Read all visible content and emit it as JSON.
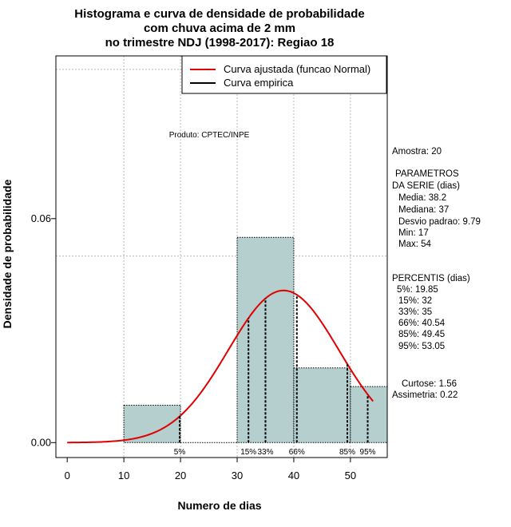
{
  "chart_data": {
    "type": "bar",
    "title_lines": [
      "Histograma e curva de densidade de probabilidade",
      "com chuva acima de 2 mm",
      "no trimestre NDJ (1998-2017): Regiao 18"
    ],
    "xlabel": "Numero de dias",
    "ylabel": "Densidade de probabilidade",
    "xlim": [
      -2,
      56.5
    ],
    "ylim": [
      -0.004,
      0.1036
    ],
    "x_ticks": [
      0,
      10,
      20,
      30,
      40,
      50
    ],
    "y_ticks": [
      {
        "value": 0.0,
        "label": "0.00"
      },
      {
        "value": 0.06,
        "label": "0.06"
      }
    ],
    "grid_x": [
      10,
      20,
      30,
      40,
      50
    ],
    "grid_y": [
      0.05,
      0.1
    ],
    "bins": [
      {
        "start": 10,
        "end": 20,
        "density": 0.01
      },
      {
        "start": 20,
        "end": 30,
        "density": 0.0
      },
      {
        "start": 30,
        "end": 40,
        "density": 0.055
      },
      {
        "start": 40,
        "end": 50,
        "density": 0.02
      },
      {
        "start": 50,
        "end": 56.5,
        "density": 0.015
      }
    ],
    "bar_color": "#b5cece",
    "curve": {
      "mean": 38.2,
      "sd": 9.79,
      "x_range": [
        0,
        54
      ],
      "color": "#e00000"
    },
    "percentile_markers": [
      {
        "label": "5%",
        "x": 19.85
      },
      {
        "label": "15%",
        "x": 32
      },
      {
        "label": "33%",
        "x": 35
      },
      {
        "label": "66%",
        "x": 40.54
      },
      {
        "label": "85%",
        "x": 49.45
      },
      {
        "label": "95%",
        "x": 53.05
      }
    ],
    "legend": {
      "position": "top-right",
      "entries": [
        {
          "label": "Curva ajustada (funcao Normal)",
          "color": "#e00000"
        },
        {
          "label": "Curva empirica",
          "color": "#000000"
        }
      ]
    },
    "annotation": "Produto: CPTEC/INPE",
    "side_panel": {
      "amostra": "Amostra: 20",
      "param_title_1": "PARAMETROS",
      "param_title_2": "DA SERIE (dias)",
      "media": "Media: 38.2",
      "mediana": "Mediana: 37",
      "desvio": "Desvio padrao: 9.79",
      "min": "Min: 17",
      "max": "Max: 54",
      "perc_title": "PERCENTIS (dias)",
      "p5": "5%: 19.85",
      "p15": "15%: 32",
      "p33": "33%: 35",
      "p66": "66%: 40.54",
      "p85": "85%: 49.45",
      "p95": "95%: 53.05",
      "curtose": "Curtose: 1.56",
      "assimetria": "Assimetria: 0.22"
    }
  }
}
